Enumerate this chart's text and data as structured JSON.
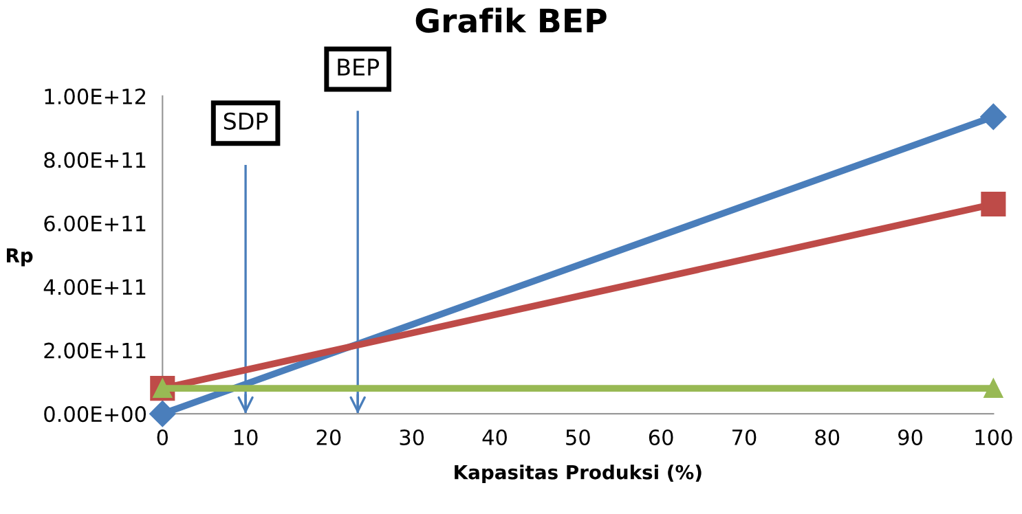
{
  "chart_data": {
    "type": "line",
    "title": "Grafik BEP",
    "xlabel": "Kapasitas Produksi (%)",
    "ylabel": "Rp",
    "x": [
      0,
      100
    ],
    "series": [
      {
        "color": "#4a7ebb",
        "values": [
          0,
          935000000000
        ],
        "marker": "diamond"
      },
      {
        "color": "#be4b48",
        "values": [
          80000000000,
          660000000000
        ],
        "marker": "square"
      },
      {
        "color": "#98b954",
        "values": [
          80000000000,
          80000000000
        ],
        "marker": "triangle"
      }
    ],
    "ref_lines": [
      {
        "axis": "x",
        "value": 10,
        "label": "SDP",
        "color": "#4a7ebb"
      },
      {
        "axis": "x",
        "value": 23.5,
        "label": "BEP",
        "color": "#4a7ebb"
      }
    ],
    "xlim": [
      0,
      100
    ],
    "xticks": [
      0,
      10,
      20,
      30,
      40,
      50,
      60,
      70,
      80,
      90,
      100
    ],
    "ylim": [
      0,
      1000000000000
    ],
    "yticks": [
      {
        "value": 0,
        "label": "0.00E+00"
      },
      {
        "value": 200000000000,
        "label": "2.00E+11"
      },
      {
        "value": 400000000000,
        "label": "4.00E+11"
      },
      {
        "value": 600000000000,
        "label": "6.00E+11"
      },
      {
        "value": 800000000000,
        "label": "8.00E+11"
      },
      {
        "value": 1000000000000,
        "label": "1.00E+12"
      }
    ],
    "grid": false,
    "legend": false,
    "line_style": "solid"
  }
}
